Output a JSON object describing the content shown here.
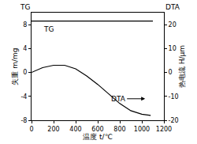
{
  "chart_data": {
    "type": "line",
    "x_label": "温度 t/℃",
    "y_label": "失重 m/mg",
    "y2_label": "热电流 H/μm",
    "y_header": "TG",
    "y2_header": "DTA",
    "xlim": [
      0,
      1200
    ],
    "xticks": [
      0,
      200,
      400,
      600,
      800,
      1000,
      1200
    ],
    "ylim": [
      -8,
      10
    ],
    "yticks": [
      -8,
      -4,
      0,
      4,
      8
    ],
    "y2lim": [
      -20,
      25
    ],
    "y2ticks": [
      -20,
      -10,
      0,
      10,
      20
    ],
    "grid": false,
    "series": [
      {
        "name": "TG",
        "color": "#000000",
        "x": [
          0,
          1100
        ],
        "values": [
          8.6,
          8.6
        ]
      },
      {
        "name": "DTA",
        "color": "#000000",
        "axis": "y2",
        "x": [
          0,
          100,
          200,
          300,
          400,
          500,
          600,
          700,
          800,
          900,
          1000,
          1080
        ],
        "values": [
          0,
          2,
          3,
          3,
          1.5,
          -1.5,
          -5,
          -9,
          -13,
          -16,
          -17.5,
          -18
        ]
      }
    ],
    "annotations": [
      {
        "text": "TG",
        "x": 150,
        "y": 7.2
      },
      {
        "text": "DTA",
        "x": 1030,
        "y": -11,
        "axis": "y2",
        "arrow": true
      }
    ]
  }
}
